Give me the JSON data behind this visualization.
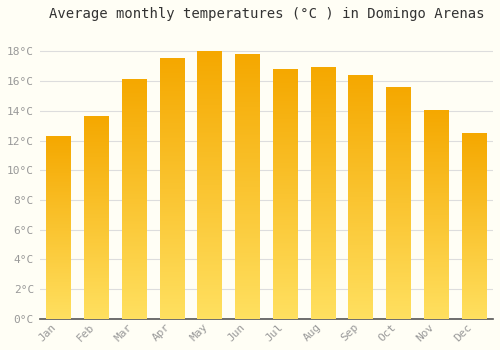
{
  "title": "Average monthly temperatures (°C ) in Domingo Arenas",
  "months": [
    "Jan",
    "Feb",
    "Mar",
    "Apr",
    "May",
    "Jun",
    "Jul",
    "Aug",
    "Sep",
    "Oct",
    "Nov",
    "Dec"
  ],
  "temperatures": [
    12.3,
    13.6,
    16.1,
    17.5,
    18.0,
    17.8,
    16.8,
    16.9,
    16.4,
    15.6,
    14.0,
    12.5
  ],
  "bar_color_top": "#F5A800",
  "bar_color_bottom": "#FFE060",
  "background_color": "#FFFEF5",
  "grid_color": "#DDDDDD",
  "ytick_labels": [
    "0°C",
    "2°C",
    "4°C",
    "6°C",
    "8°C",
    "10°C",
    "12°C",
    "14°C",
    "16°C",
    "18°C"
  ],
  "ytick_values": [
    0,
    2,
    4,
    6,
    8,
    10,
    12,
    14,
    16,
    18
  ],
  "ylim": [
    0,
    19.5
  ],
  "title_fontsize": 10,
  "tick_fontsize": 8,
  "tick_color": "#999999",
  "spine_color": "#555555",
  "font_family": "monospace",
  "bar_width": 0.65
}
